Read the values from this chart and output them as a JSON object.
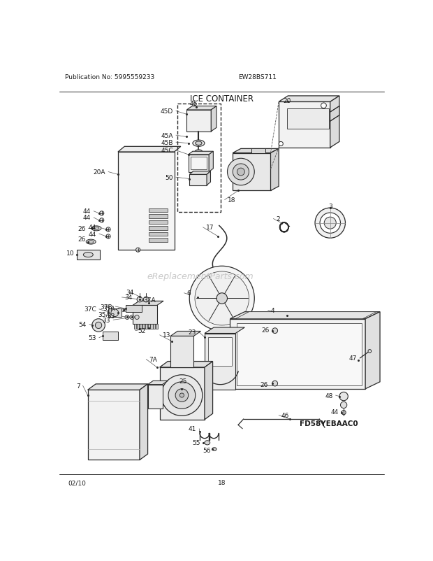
{
  "title": "ICE CONTAINER",
  "pub_no": "Publication No: 5995559233",
  "model": "EW28BS711",
  "diagram_code": "FD58YEBAAC0",
  "date": "02/10",
  "page": "18",
  "watermark": "eReplacementParts.com",
  "bg_color": "#ffffff",
  "line_color": "#2a2a2a",
  "text_color": "#1a1a1a",
  "watermark_color": "#c8c8c8",
  "border_line": 0.8,
  "component_lw": 0.8,
  "label_fs": 6.5,
  "header_fs": 6.5,
  "title_fs": 8.5
}
